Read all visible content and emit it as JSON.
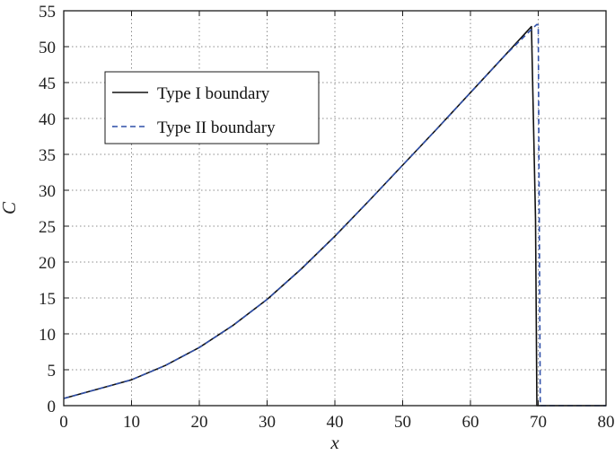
{
  "chart_data": {
    "type": "line",
    "xlabel": "x",
    "ylabel": "C",
    "xlim": [
      0,
      80
    ],
    "ylim": [
      0,
      55
    ],
    "xticks": [
      0,
      10,
      20,
      30,
      40,
      50,
      60,
      70,
      80
    ],
    "yticks": [
      0,
      5,
      10,
      15,
      20,
      25,
      30,
      35,
      40,
      45,
      50,
      55
    ],
    "grid": true,
    "legend_position": "upper-left",
    "series": [
      {
        "name": "Type I boundary",
        "style": "solid",
        "color": "#111111",
        "x": [
          0,
          5,
          10,
          15,
          20,
          25,
          30,
          35,
          40,
          45,
          50,
          55,
          60,
          65,
          69,
          69.6,
          69.8,
          80
        ],
        "y": [
          1,
          2.3,
          3.6,
          5.6,
          8.1,
          11.2,
          14.8,
          19.0,
          23.6,
          28.5,
          33.5,
          38.5,
          43.6,
          48.7,
          52.8,
          26,
          0,
          0
        ]
      },
      {
        "name": "Type II boundary",
        "style": "dashed",
        "color": "#2f4fa8",
        "x": [
          0,
          5,
          10,
          15,
          20,
          25,
          30,
          35,
          40,
          45,
          50,
          55,
          60,
          65,
          69,
          69.8,
          70.0,
          70.3,
          80
        ],
        "y": [
          1,
          2.3,
          3.6,
          5.6,
          8.1,
          11.2,
          14.8,
          19.0,
          23.6,
          28.5,
          33.5,
          38.5,
          43.6,
          48.7,
          52.4,
          53.1,
          53.0,
          0,
          0
        ]
      }
    ]
  }
}
